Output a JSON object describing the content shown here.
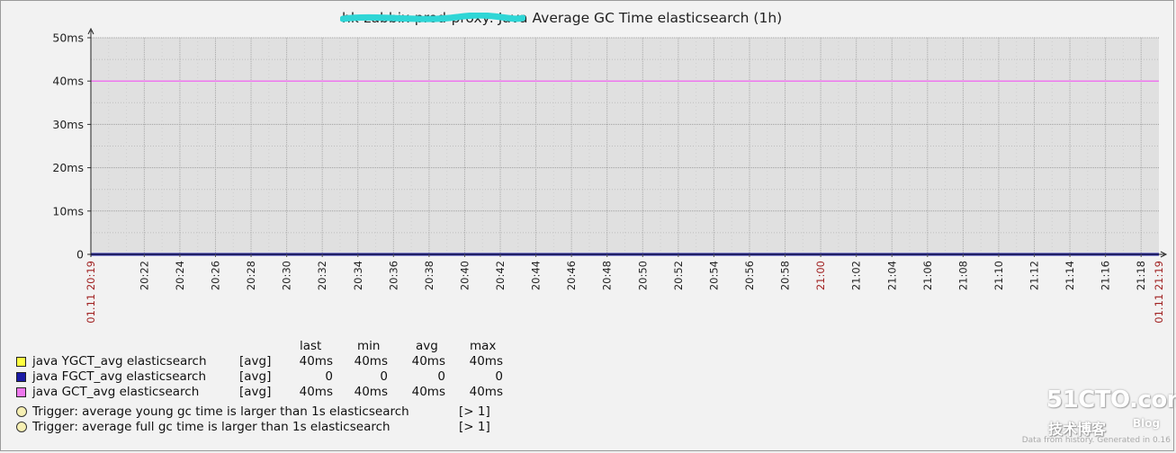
{
  "title": "hk-zabbix-prod-proxy: Java Average GC Time elasticsearch (1h)",
  "chart_data": {
    "type": "line",
    "title": "hk-zabbix-prod-proxy: Java Average GC Time elasticsearch (1h)",
    "ylim": [
      0,
      50
    ],
    "y_unit": "ms",
    "y_ticks": [
      "0",
      "10ms",
      "20ms",
      "30ms",
      "40ms",
      "50ms"
    ],
    "y_tick_values": [
      0,
      10,
      20,
      30,
      40,
      50
    ],
    "x_start_label": "01.11 20:19",
    "x_end_label": "01.11 21:19",
    "x_ticks": [
      "20:22",
      "20:24",
      "20:26",
      "20:28",
      "20:30",
      "20:32",
      "20:34",
      "20:36",
      "20:38",
      "20:40",
      "20:42",
      "20:44",
      "20:46",
      "20:48",
      "20:50",
      "20:52",
      "20:54",
      "20:56",
      "20:58",
      "21:00",
      "21:02",
      "21:04",
      "21:06",
      "21:08",
      "21:10",
      "21:12",
      "21:14",
      "21:16",
      "21:18"
    ],
    "x_tick_minutes": [
      3,
      5,
      7,
      9,
      11,
      13,
      15,
      17,
      19,
      21,
      23,
      25,
      27,
      29,
      31,
      33,
      35,
      37,
      39,
      41,
      43,
      45,
      47,
      49,
      51,
      53,
      55,
      57,
      59
    ],
    "x_range_minutes": [
      0,
      60
    ],
    "highlight_tick": "21:00",
    "grid": true,
    "series": [
      {
        "name": "java YGCT_avg elasticsearch",
        "color": "#ffff40",
        "x": [
          0,
          60
        ],
        "values": [
          40,
          40
        ]
      },
      {
        "name": "java FGCT_avg elasticsearch",
        "color": "#1a1aa6",
        "x": [
          0,
          60
        ],
        "values": [
          0,
          0
        ]
      },
      {
        "name": "java GCT_avg elasticsearch",
        "color": "#ee77ee",
        "x": [
          0,
          60
        ],
        "values": [
          40,
          40
        ]
      }
    ]
  },
  "legend": {
    "headers": {
      "last": "last",
      "min": "min",
      "avg": "avg",
      "max": "max"
    },
    "items": [
      {
        "name": "java YGCT_avg elasticsearch",
        "func": "[avg]",
        "last": "40ms",
        "min": "40ms",
        "avg": "40ms",
        "max": "40ms",
        "color": "#ffff40"
      },
      {
        "name": "java FGCT_avg elasticsearch",
        "func": "[avg]",
        "last": "0",
        "min": "0",
        "avg": "0",
        "max": "0",
        "color": "#1a1aa6"
      },
      {
        "name": "java GCT_avg elasticsearch",
        "func": "[avg]",
        "last": "40ms",
        "min": "40ms",
        "avg": "40ms",
        "max": "40ms",
        "color": "#ee77ee"
      }
    ],
    "triggers": [
      {
        "text": "Trigger: average young gc time is larger than 1s elasticsearch",
        "cond": "[> 1]"
      },
      {
        "text": "Trigger: average full gc time is larger than 1s elasticsearch",
        "cond": "[> 1]"
      }
    ]
  },
  "watermark": {
    "logo": "51CTO.com",
    "sub": "技术博客",
    "blog": "Blog"
  },
  "footer": "Data from history. Generated in 0.16"
}
